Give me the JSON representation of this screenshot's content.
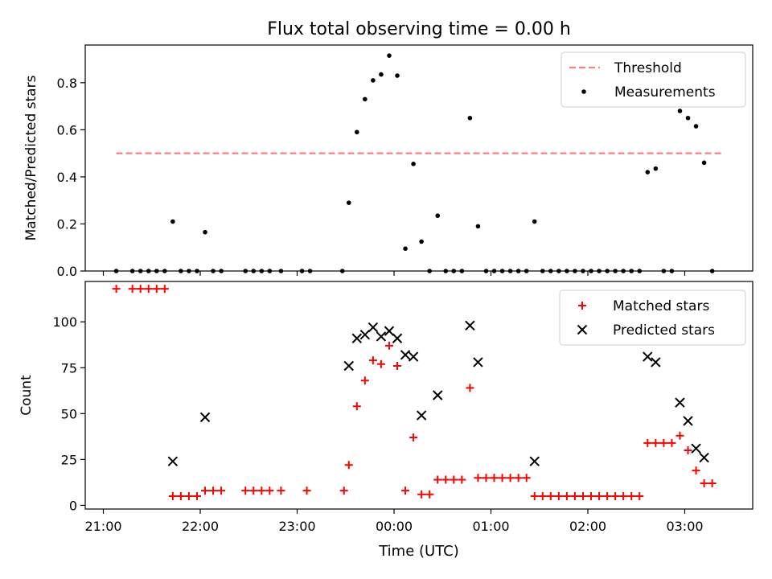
{
  "title": "Flux total observing time = 0.00 h",
  "xlabel": "Time (UTC)",
  "x_ticks": [
    "21:00",
    "22:00",
    "23:00",
    "00:00",
    "01:00",
    "02:00",
    "03:00"
  ],
  "colors": {
    "threshold": "#ff7f7f",
    "measurement": "#000000",
    "matched": "#ff0000",
    "predicted": "#000000"
  },
  "chart_data": [
    {
      "type": "scatter",
      "ylabel": "Matched/Predicted stars",
      "y_ticks": [
        "0.0",
        "0.2",
        "0.4",
        "0.6",
        "0.8"
      ],
      "ylim": [
        0,
        0.96
      ],
      "xlim": [
        "20:52",
        "03:41"
      ],
      "legend_position": "top-right",
      "series": [
        {
          "name": "Threshold",
          "style": "dashed-line",
          "points": [
            [
              "21:08",
              0.5
            ],
            [
              "03:23",
              0.5
            ]
          ]
        },
        {
          "name": "Measurements",
          "style": "dot",
          "points": [
            [
              "21:08",
              0.0
            ],
            [
              "21:18",
              0.0
            ],
            [
              "21:23",
              0.0
            ],
            [
              "21:28",
              0.0
            ],
            [
              "21:33",
              0.0
            ],
            [
              "21:38",
              0.0
            ],
            [
              "21:43",
              0.21
            ],
            [
              "21:48",
              0.0
            ],
            [
              "21:53",
              0.0
            ],
            [
              "21:58",
              0.0
            ],
            [
              "22:03",
              0.165
            ],
            [
              "22:08",
              0.0
            ],
            [
              "22:13",
              0.0
            ],
            [
              "22:28",
              0.0
            ],
            [
              "22:33",
              0.0
            ],
            [
              "22:38",
              0.0
            ],
            [
              "22:43",
              0.0
            ],
            [
              "22:50",
              0.0
            ],
            [
              "23:03",
              0.0
            ],
            [
              "23:08",
              0.0
            ],
            [
              "23:28",
              0.0
            ],
            [
              "23:32",
              0.29
            ],
            [
              "23:37",
              0.59
            ],
            [
              "23:42",
              0.73
            ],
            [
              "23:47",
              0.81
            ],
            [
              "23:52",
              0.835
            ],
            [
              "23:57",
              0.915
            ],
            [
              "00:02",
              0.83
            ],
            [
              "00:07",
              0.095
            ],
            [
              "00:12",
              0.455
            ],
            [
              "00:17",
              0.125
            ],
            [
              "00:22",
              0.0
            ],
            [
              "00:27",
              0.235
            ],
            [
              "00:32",
              0.0
            ],
            [
              "00:37",
              0.0
            ],
            [
              "00:42",
              0.0
            ],
            [
              "00:47",
              0.65
            ],
            [
              "00:52",
              0.19
            ],
            [
              "00:57",
              0.0
            ],
            [
              "01:02",
              0.0
            ],
            [
              "01:07",
              0.0
            ],
            [
              "01:12",
              0.0
            ],
            [
              "01:17",
              0.0
            ],
            [
              "01:22",
              0.0
            ],
            [
              "01:27",
              0.21
            ],
            [
              "01:32",
              0.0
            ],
            [
              "01:37",
              0.0
            ],
            [
              "01:42",
              0.0
            ],
            [
              "01:47",
              0.0
            ],
            [
              "01:52",
              0.0
            ],
            [
              "01:57",
              0.0
            ],
            [
              "02:02",
              0.0
            ],
            [
              "02:07",
              0.0
            ],
            [
              "02:12",
              0.0
            ],
            [
              "02:17",
              0.0
            ],
            [
              "02:22",
              0.0
            ],
            [
              "02:27",
              0.0
            ],
            [
              "02:32",
              0.0
            ],
            [
              "02:37",
              0.42
            ],
            [
              "02:42",
              0.435
            ],
            [
              "02:47",
              0.0
            ],
            [
              "02:52",
              0.0
            ],
            [
              "02:57",
              0.68
            ],
            [
              "03:02",
              0.65
            ],
            [
              "03:07",
              0.615
            ],
            [
              "03:12",
              0.46
            ],
            [
              "03:17",
              0.0
            ]
          ]
        }
      ]
    },
    {
      "type": "scatter",
      "ylabel": "Count",
      "y_ticks": [
        "0",
        "25",
        "50",
        "75",
        "100"
      ],
      "ylim": [
        -2,
        122
      ],
      "xlim": [
        "20:52",
        "03:41"
      ],
      "legend_position": "top-right",
      "series": [
        {
          "name": "Matched stars",
          "style": "plus",
          "points": [
            [
              "21:08",
              118
            ],
            [
              "21:18",
              118
            ],
            [
              "21:23",
              118
            ],
            [
              "21:28",
              118
            ],
            [
              "21:33",
              118
            ],
            [
              "21:38",
              118
            ],
            [
              "21:43",
              5
            ],
            [
              "21:48",
              5
            ],
            [
              "21:53",
              5
            ],
            [
              "21:58",
              5
            ],
            [
              "22:03",
              8
            ],
            [
              "22:08",
              8
            ],
            [
              "22:13",
              8
            ],
            [
              "22:28",
              8
            ],
            [
              "22:33",
              8
            ],
            [
              "22:38",
              8
            ],
            [
              "22:43",
              8
            ],
            [
              "22:50",
              8
            ],
            [
              "23:06",
              8
            ],
            [
              "23:29",
              8
            ],
            [
              "23:32",
              22
            ],
            [
              "23:37",
              54
            ],
            [
              "23:42",
              68
            ],
            [
              "23:47",
              79
            ],
            [
              "23:52",
              77
            ],
            [
              "23:57",
              87
            ],
            [
              "00:02",
              76
            ],
            [
              "00:07",
              8
            ],
            [
              "00:12",
              37
            ],
            [
              "00:17",
              6
            ],
            [
              "00:22",
              6
            ],
            [
              "00:27",
              14
            ],
            [
              "00:32",
              14
            ],
            [
              "00:37",
              14
            ],
            [
              "00:42",
              14
            ],
            [
              "00:47",
              64
            ],
            [
              "00:52",
              15
            ],
            [
              "00:57",
              15
            ],
            [
              "01:02",
              15
            ],
            [
              "01:07",
              15
            ],
            [
              "01:12",
              15
            ],
            [
              "01:17",
              15
            ],
            [
              "01:22",
              15
            ],
            [
              "01:27",
              5
            ],
            [
              "01:32",
              5
            ],
            [
              "01:37",
              5
            ],
            [
              "01:42",
              5
            ],
            [
              "01:47",
              5
            ],
            [
              "01:52",
              5
            ],
            [
              "01:57",
              5
            ],
            [
              "02:02",
              5
            ],
            [
              "02:07",
              5
            ],
            [
              "02:12",
              5
            ],
            [
              "02:17",
              5
            ],
            [
              "02:22",
              5
            ],
            [
              "02:27",
              5
            ],
            [
              "02:32",
              5
            ],
            [
              "02:37",
              34
            ],
            [
              "02:42",
              34
            ],
            [
              "02:47",
              34
            ],
            [
              "02:52",
              34
            ],
            [
              "02:57",
              38
            ],
            [
              "03:02",
              30
            ],
            [
              "03:07",
              19
            ],
            [
              "03:12",
              12
            ],
            [
              "03:17",
              12
            ]
          ]
        },
        {
          "name": "Predicted stars",
          "style": "x",
          "points": [
            [
              "21:43",
              24
            ],
            [
              "22:03",
              48
            ],
            [
              "23:32",
              76
            ],
            [
              "23:37",
              91
            ],
            [
              "23:42",
              93
            ],
            [
              "23:47",
              97
            ],
            [
              "23:52",
              92
            ],
            [
              "23:57",
              95
            ],
            [
              "00:02",
              91
            ],
            [
              "00:07",
              82
            ],
            [
              "00:12",
              81
            ],
            [
              "00:17",
              49
            ],
            [
              "00:27",
              60
            ],
            [
              "00:47",
              98
            ],
            [
              "00:52",
              78
            ],
            [
              "01:27",
              24
            ],
            [
              "02:37",
              81
            ],
            [
              "02:42",
              78
            ],
            [
              "02:57",
              56
            ],
            [
              "03:02",
              46
            ],
            [
              "03:07",
              31
            ],
            [
              "03:12",
              26
            ]
          ]
        }
      ]
    }
  ]
}
